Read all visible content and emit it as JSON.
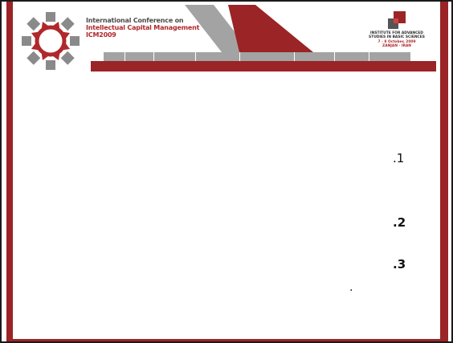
{
  "header": {
    "title_line1": "International Conference on",
    "title_line2": "Intellectual Capital Management",
    "title_line3": "ICM2009",
    "institute": {
      "line1": "INSTITUTE FOR ADVANCED",
      "line2": "STUDIES IN BASIC SCIENCES",
      "line3": "7 - 8 October, 2009",
      "line4": "ZANJAN - IRAN"
    },
    "tab_count": 8
  },
  "content": {
    "items": [
      ".1",
      ".2",
      ".3"
    ],
    "stray_mark": "."
  },
  "colors": {
    "accent_red": "#9b2426",
    "tab_gray": "#a3a3a3",
    "logo_gray": "#8a8a8a"
  },
  "icons": {
    "logo": "conference-emblem-icon",
    "institute": "institute-logo-icon"
  }
}
